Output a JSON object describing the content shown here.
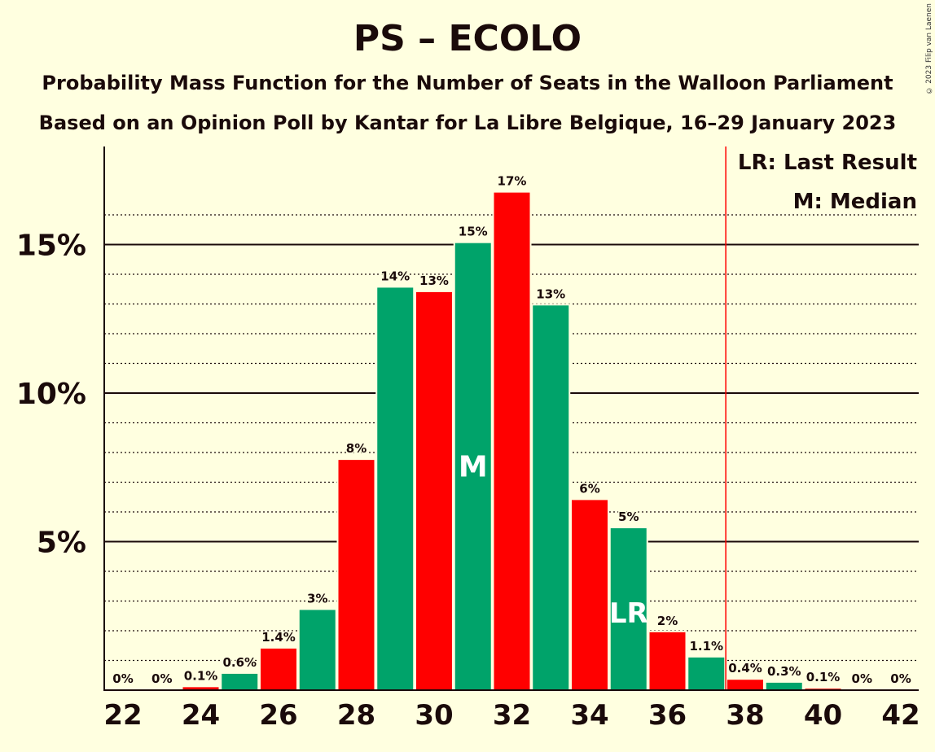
{
  "title": "PS – ECOLO",
  "subtitle1": "Probability Mass Function for the Number of Seats in the Walloon Parliament",
  "subtitle2": "Based on an Opinion Poll by Kantar for La Libre Belgique, 16–29 January 2023",
  "copyright": "© 2023 Filip van Laenen",
  "colors": {
    "background": "#ffffe0",
    "red": "#ff0000",
    "green": "#00a36a",
    "text": "#1a0a0a"
  },
  "chart_data": {
    "type": "bar",
    "x": [
      22,
      23,
      24,
      25,
      26,
      27,
      28,
      29,
      30,
      31,
      32,
      33,
      34,
      35,
      36,
      37,
      38,
      39,
      40,
      41,
      42
    ],
    "values": [
      0,
      0,
      0.1,
      0.55,
      1.4,
      2.7,
      7.75,
      13.55,
      13.4,
      15.05,
      16.75,
      12.95,
      6.4,
      5.45,
      1.95,
      1.1,
      0.35,
      0.25,
      0.05,
      0,
      0
    ],
    "labels": [
      "0%",
      "0%",
      "0.1%",
      "0.6%",
      "1.4%",
      "3%",
      "8%",
      "14%",
      "13%",
      "15%",
      "17%",
      "13%",
      "6%",
      "5%",
      "2%",
      "1.1%",
      "0.4%",
      "0.3%",
      "0.1%",
      "0%",
      "0%"
    ],
    "bar_colors": [
      "red",
      "green",
      "red",
      "green",
      "red",
      "green",
      "red",
      "green",
      "red",
      "green",
      "red",
      "green",
      "red",
      "green",
      "red",
      "green",
      "red",
      "green",
      "red",
      "green",
      "red"
    ],
    "x_ticks": [
      "22",
      "24",
      "26",
      "28",
      "30",
      "32",
      "34",
      "36",
      "38",
      "40",
      "42"
    ],
    "y_ticks": [
      {
        "value": 5,
        "label": "5%"
      },
      {
        "value": 10,
        "label": "10%"
      },
      {
        "value": 15,
        "label": "15%"
      }
    ],
    "ylim": [
      0,
      18
    ],
    "median": {
      "x": 31,
      "label": "M"
    },
    "last_result": {
      "x": 35,
      "label": "LR"
    },
    "majority_line_after": 37,
    "legend": [
      "LR: Last Result",
      "M: Median"
    ],
    "legend_position": "top-right",
    "grid": true
  }
}
